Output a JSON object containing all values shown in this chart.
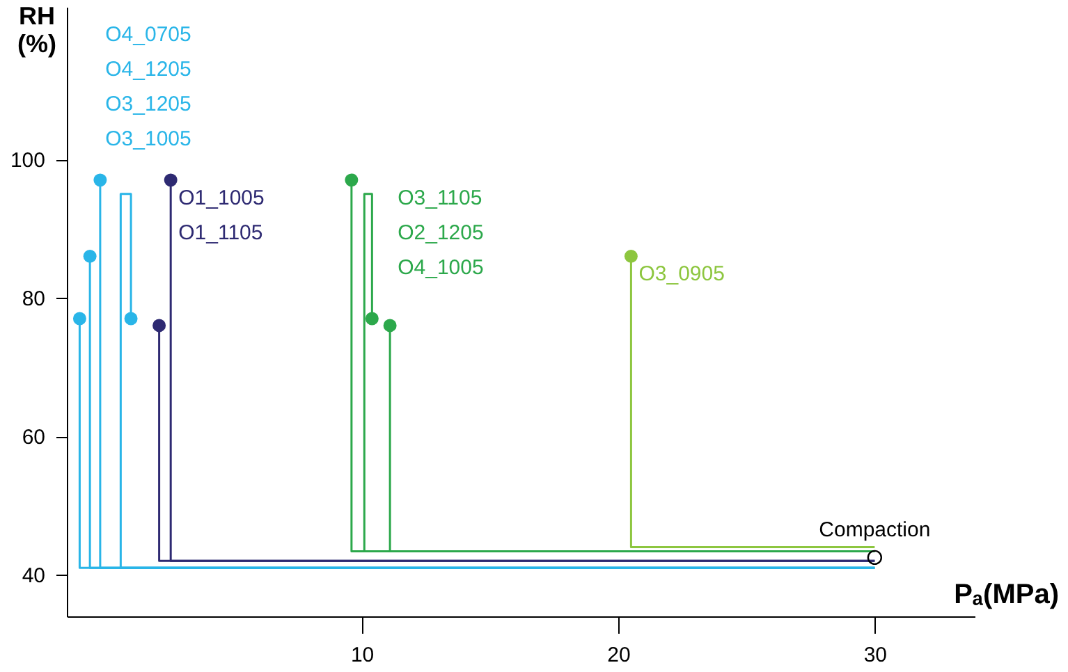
{
  "chart_data": {
    "type": "line",
    "xlabel": "Pₐ(MPa)",
    "ylabel": "RH (%)",
    "xlim": [
      -1.5,
      33.9
    ],
    "ylim": [
      34,
      122
    ],
    "xticks": [
      10,
      20,
      30
    ],
    "yticks": [
      40,
      60,
      80,
      100
    ],
    "grid": false,
    "line_style": "solid",
    "series": [
      {
        "color": "#29b5e8",
        "x": [
          30,
          -1.0,
          -1.0
        ],
        "values": [
          41,
          41,
          77
        ]
      },
      {
        "color": "#29b5e8",
        "x": [
          30,
          -0.6,
          -0.6
        ],
        "values": [
          41,
          41,
          86
        ]
      },
      {
        "color": "#29b5e8",
        "x": [
          30,
          -0.2,
          -0.2
        ],
        "values": [
          41,
          41,
          97
        ]
      },
      {
        "color": "#29b5e8",
        "x": [
          30,
          0.6,
          0.6,
          1.0,
          1.0
        ],
        "values": [
          41,
          41,
          95,
          95,
          77
        ]
      },
      {
        "color": "#2e2a72",
        "x": [
          30,
          2.55,
          2.55
        ],
        "values": [
          42,
          42,
          97
        ]
      },
      {
        "color": "#2e2a72",
        "x": [
          30,
          2.1,
          2.1
        ],
        "values": [
          42,
          42,
          76
        ]
      },
      {
        "color": "#2ca84b",
        "x": [
          30,
          9.6,
          9.6
        ],
        "values": [
          43.4,
          43.4,
          97
        ]
      },
      {
        "color": "#2ca84b",
        "x": [
          30,
          10.1,
          10.1,
          10.4,
          10.4
        ],
        "values": [
          43.4,
          43.4,
          95,
          95,
          77
        ]
      },
      {
        "color": "#2ca84b",
        "x": [
          30,
          11.1,
          11.1
        ],
        "values": [
          43.4,
          43.4,
          76
        ]
      },
      {
        "color": "#8dc63f",
        "x": [
          30,
          20.5,
          20.5
        ],
        "values": [
          44,
          44,
          86
        ]
      },
      {
        "type": "scatter",
        "color": "#29b5e8",
        "marker": "circle",
        "x": [
          -1.0,
          -0.6,
          -0.2,
          1.0
        ],
        "values": [
          77,
          86,
          97,
          77
        ]
      },
      {
        "type": "scatter",
        "color": "#2e2a72",
        "marker": "circle",
        "x": [
          2.1,
          2.55
        ],
        "values": [
          76,
          97
        ]
      },
      {
        "type": "scatter",
        "color": "#2ca84b",
        "marker": "circle",
        "x": [
          9.6,
          10.4,
          11.1
        ],
        "values": [
          97,
          77,
          76
        ]
      },
      {
        "type": "scatter",
        "color": "#8dc63f",
        "marker": "circle",
        "x": [
          20.5
        ],
        "values": [
          86
        ]
      },
      {
        "type": "scatter",
        "color": "#000000",
        "marker": "circle",
        "x": [
          30
        ],
        "values": [
          42.5
        ]
      }
    ],
    "annotations": [
      "O4_0705",
      "O4_1205",
      "O3_1205",
      "O3_1005",
      "O1_1005",
      "O1_1105",
      "O3_1105",
      "O2_1205",
      "O4_1005",
      "O3_0905",
      {
        "text": "Compaction",
        "x": 30,
        "y": 42.5
      }
    ]
  }
}
